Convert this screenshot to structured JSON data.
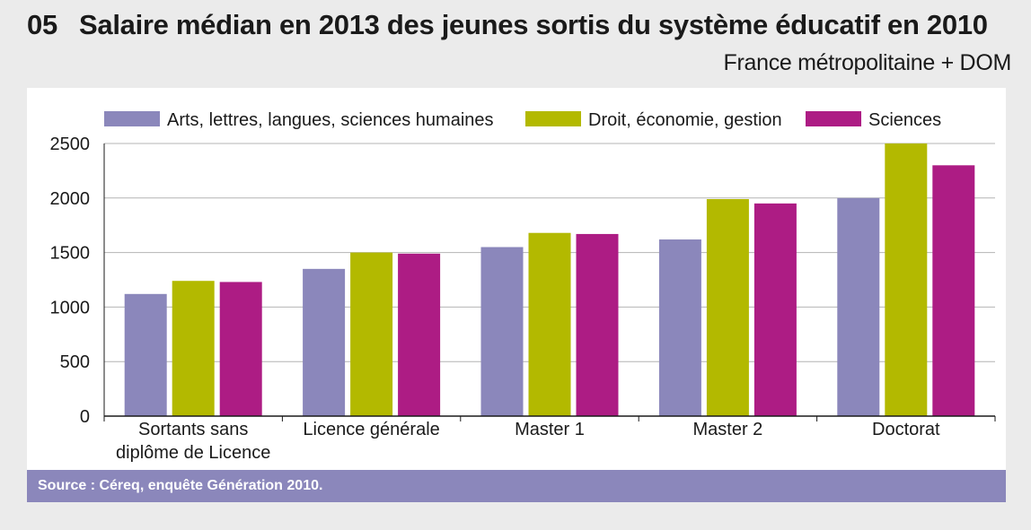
{
  "header": {
    "number": "05",
    "title": "Salaire médian en 2013 des jeunes sortis du système éducatif en 2010",
    "subtitle": "France métropolitaine + DOM"
  },
  "footer": {
    "source": "Source : Céreq, enquête Génération 2010."
  },
  "chart_data": {
    "type": "bar",
    "title": "Salaire médian en 2013 des jeunes sortis du système éducatif en 2010",
    "subtitle": "France métropolitaine + DOM",
    "categories": [
      [
        "Sortants sans",
        "diplôme de Licence"
      ],
      [
        "Licence générale"
      ],
      [
        "Master 1"
      ],
      [
        "Master 2"
      ],
      [
        "Doctorat"
      ]
    ],
    "series": [
      {
        "name": "Arts, lettres, langues, sciences humaines",
        "color": "#8b87bb",
        "values": [
          1120,
          1350,
          1550,
          1620,
          2000
        ]
      },
      {
        "name": "Droit, économie, gestion",
        "color": "#b3b900",
        "values": [
          1240,
          1500,
          1680,
          1990,
          2500
        ]
      },
      {
        "name": "Sciences",
        "color": "#ad1c84",
        "values": [
          1230,
          1490,
          1670,
          1950,
          2300
        ]
      }
    ],
    "ylim": [
      0,
      2500
    ],
    "yticks": [
      0,
      500,
      1000,
      1500,
      2000,
      2500
    ],
    "xlabel": "",
    "ylabel": "",
    "grid": true,
    "legend_position": "top"
  }
}
